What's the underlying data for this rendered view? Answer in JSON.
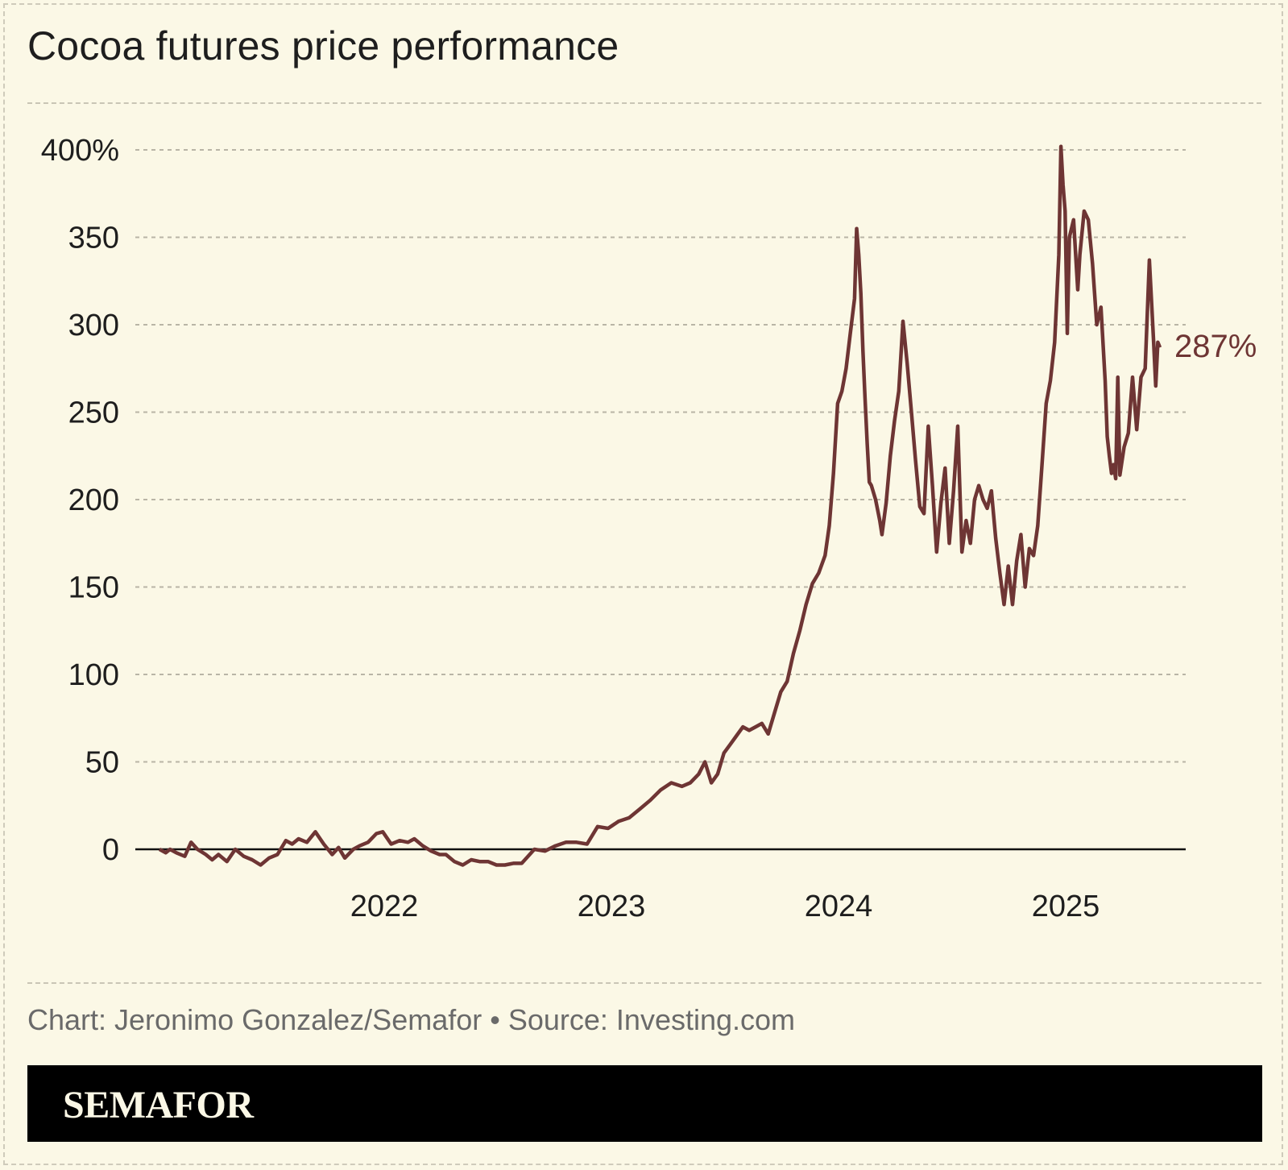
{
  "header": {
    "title": "Cocoa futures price performance"
  },
  "footer": {
    "credit": "Chart: Jeronimo Gonzalez/Semafor • Source: Investing.com",
    "brand": "SEMAFOR"
  },
  "colors": {
    "background": "#fbf8e6",
    "line": "#6e3534",
    "brand_bar": "#000000"
  },
  "chart_data": {
    "type": "line",
    "title": "Cocoa futures price performance",
    "xlabel": "",
    "ylabel": "",
    "yticks": [
      0,
      50,
      100,
      150,
      200,
      250,
      300,
      350,
      400
    ],
    "ytick_labels": [
      "0",
      "50",
      "100",
      "150",
      "200",
      "250",
      "300",
      "350",
      "400%"
    ],
    "xticks": [
      2022,
      2023,
      2024,
      2025
    ],
    "xtick_labels": [
      "2022",
      "2023",
      "2024",
      "2025"
    ],
    "xlim": [
      2021.0,
      2025.55
    ],
    "ylim": [
      0,
      400
    ],
    "grid": true,
    "end_label": "287%",
    "series": [
      {
        "values": [
          [
            2021.0,
            0
          ],
          [
            2021.03,
            -2
          ],
          [
            2021.05,
            0
          ],
          [
            2021.08,
            -2
          ],
          [
            2021.12,
            -4
          ],
          [
            2021.15,
            4
          ],
          [
            2021.18,
            0
          ],
          [
            2021.22,
            -3
          ],
          [
            2021.25,
            -6
          ],
          [
            2021.28,
            -3
          ],
          [
            2021.32,
            -7
          ],
          [
            2021.36,
            0
          ],
          [
            2021.4,
            -4
          ],
          [
            2021.44,
            -6
          ],
          [
            2021.48,
            -9
          ],
          [
            2021.52,
            -5
          ],
          [
            2021.56,
            -3
          ],
          [
            2021.6,
            5
          ],
          [
            2021.63,
            3
          ],
          [
            2021.66,
            6
          ],
          [
            2021.7,
            4
          ],
          [
            2021.74,
            10
          ],
          [
            2021.78,
            3
          ],
          [
            2021.82,
            -3
          ],
          [
            2021.85,
            1
          ],
          [
            2021.88,
            -5
          ],
          [
            2021.92,
            0
          ],
          [
            2021.95,
            2
          ],
          [
            2021.99,
            4
          ],
          [
            2022.03,
            9
          ],
          [
            2022.06,
            10
          ],
          [
            2022.1,
            3
          ],
          [
            2022.14,
            5
          ],
          [
            2022.18,
            4
          ],
          [
            2022.21,
            6
          ],
          [
            2022.25,
            2
          ],
          [
            2022.29,
            -1
          ],
          [
            2022.33,
            -3
          ],
          [
            2022.36,
            -3
          ],
          [
            2022.4,
            -7
          ],
          [
            2022.44,
            -9
          ],
          [
            2022.48,
            -6
          ],
          [
            2022.52,
            -7
          ],
          [
            2022.56,
            -7
          ],
          [
            2022.6,
            -9
          ],
          [
            2022.64,
            -9
          ],
          [
            2022.68,
            -8
          ],
          [
            2022.72,
            -8
          ],
          [
            2022.78,
            0
          ],
          [
            2022.83,
            -1
          ],
          [
            2022.88,
            2
          ],
          [
            2022.93,
            4
          ],
          [
            2022.98,
            4
          ],
          [
            2023.03,
            3
          ],
          [
            2023.08,
            13
          ],
          [
            2023.13,
            12
          ],
          [
            2023.18,
            16
          ],
          [
            2023.23,
            18
          ],
          [
            2023.28,
            23
          ],
          [
            2023.33,
            28
          ],
          [
            2023.38,
            34
          ],
          [
            2023.43,
            38
          ],
          [
            2023.48,
            36
          ],
          [
            2023.52,
            38
          ],
          [
            2023.56,
            43
          ],
          [
            2023.59,
            50
          ],
          [
            2023.62,
            38
          ],
          [
            2023.65,
            43
          ],
          [
            2023.68,
            55
          ],
          [
            2023.71,
            60
          ],
          [
            2023.74,
            65
          ],
          [
            2023.77,
            70
          ],
          [
            2023.8,
            68
          ],
          [
            2023.83,
            70
          ],
          [
            2023.86,
            72
          ],
          [
            2023.89,
            66
          ],
          [
            2023.92,
            78
          ],
          [
            2023.95,
            90
          ],
          [
            2023.98,
            96
          ],
          [
            2024.01,
            112
          ],
          [
            2024.04,
            125
          ],
          [
            2024.07,
            140
          ],
          [
            2024.1,
            152
          ],
          [
            2024.13,
            158
          ],
          [
            2024.16,
            168
          ],
          [
            2024.18,
            185
          ],
          [
            2024.2,
            215
          ],
          [
            2024.22,
            255
          ],
          [
            2024.24,
            262
          ],
          [
            2024.26,
            275
          ],
          [
            2024.28,
            295
          ],
          [
            2024.3,
            315
          ],
          [
            2024.31,
            355
          ],
          [
            2024.32,
            340
          ],
          [
            2024.33,
            318
          ],
          [
            2024.34,
            285
          ],
          [
            2024.35,
            258
          ],
          [
            2024.36,
            232
          ],
          [
            2024.37,
            210
          ],
          [
            2024.38,
            208
          ],
          [
            2024.4,
            200
          ],
          [
            2024.42,
            188
          ],
          [
            2024.43,
            180
          ],
          [
            2024.45,
            198
          ],
          [
            2024.47,
            225
          ],
          [
            2024.49,
            245
          ],
          [
            2024.51,
            262
          ],
          [
            2024.53,
            302
          ],
          [
            2024.55,
            278
          ],
          [
            2024.57,
            250
          ],
          [
            2024.59,
            222
          ],
          [
            2024.61,
            196
          ],
          [
            2024.63,
            192
          ],
          [
            2024.65,
            242
          ],
          [
            2024.67,
            208
          ],
          [
            2024.69,
            170
          ],
          [
            2024.71,
            198
          ],
          [
            2024.73,
            218
          ],
          [
            2024.75,
            175
          ],
          [
            2024.77,
            205
          ],
          [
            2024.79,
            242
          ],
          [
            2024.81,
            170
          ],
          [
            2024.83,
            188
          ],
          [
            2024.85,
            175
          ],
          [
            2024.87,
            200
          ],
          [
            2024.89,
            208
          ],
          [
            2024.91,
            200
          ],
          [
            2024.93,
            195
          ],
          [
            2024.95,
            205
          ],
          [
            2024.97,
            178
          ],
          [
            2024.99,
            158
          ],
          [
            2025.01,
            140
          ],
          [
            2025.03,
            162
          ],
          [
            2025.05,
            140
          ],
          [
            2025.07,
            165
          ],
          [
            2025.09,
            180
          ],
          [
            2025.11,
            150
          ],
          [
            2025.13,
            172
          ],
          [
            2025.15,
            168
          ],
          [
            2025.17,
            185
          ],
          [
            2025.19,
            220
          ],
          [
            2025.21,
            255
          ],
          [
            2025.23,
            268
          ],
          [
            2025.25,
            290
          ],
          [
            2025.27,
            340
          ],
          [
            2025.28,
            402
          ],
          [
            2025.29,
            380
          ],
          [
            2025.3,
            365
          ],
          [
            2025.31,
            295
          ],
          [
            2025.32,
            350
          ],
          [
            2025.34,
            360
          ],
          [
            2025.36,
            320
          ],
          [
            2025.37,
            340
          ],
          [
            2025.39,
            365
          ],
          [
            2025.41,
            360
          ],
          [
            2025.43,
            335
          ],
          [
            2025.45,
            300
          ],
          [
            2025.47,
            310
          ],
          [
            2025.49,
            268
          ],
          [
            2025.5,
            236
          ],
          [
            2025.51,
            225
          ],
          [
            2025.52,
            215
          ],
          [
            2025.53,
            220
          ],
          [
            2025.54,
            212
          ],
          [
            2025.55,
            270
          ],
          [
            2025.56,
            214
          ],
          [
            2025.58,
            230
          ],
          [
            2025.6,
            238
          ],
          [
            2025.62,
            270
          ],
          [
            2025.64,
            240
          ],
          [
            2025.66,
            270
          ],
          [
            2025.68,
            275
          ],
          [
            2025.7,
            337
          ],
          [
            2025.72,
            290
          ],
          [
            2025.73,
            265
          ],
          [
            2025.74,
            290
          ],
          [
            2025.75,
            287
          ]
        ]
      }
    ]
  }
}
